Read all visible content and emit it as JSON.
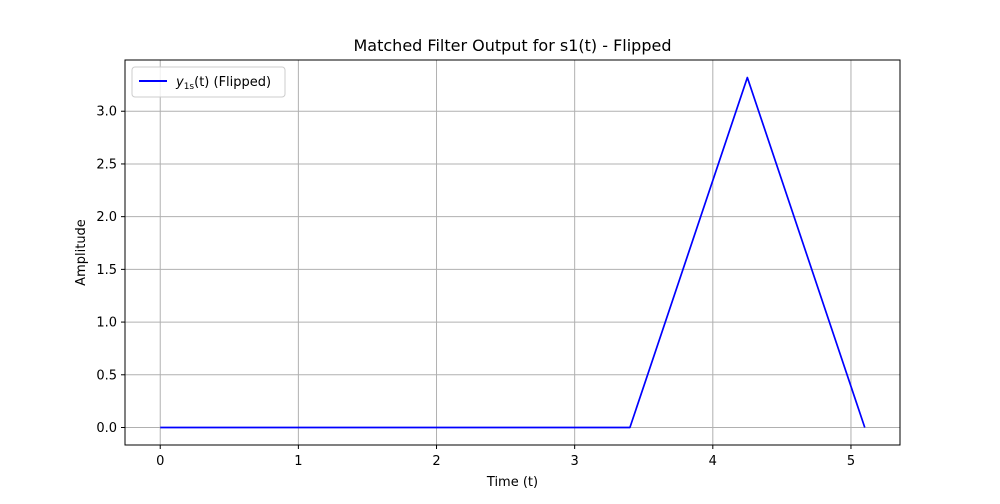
{
  "chart_data": {
    "type": "line",
    "title": "Matched Filter Output for s1(t) - Flipped",
    "xlabel": "Time (t)",
    "ylabel": "Amplitude",
    "xlim": [
      -0.255,
      5.355
    ],
    "ylim": [
      -0.166,
      3.486
    ],
    "xticks": [
      0,
      1,
      2,
      3,
      4,
      5
    ],
    "xtick_labels": [
      "0",
      "1",
      "2",
      "3",
      "4",
      "5"
    ],
    "yticks": [
      0.0,
      0.5,
      1.0,
      1.5,
      2.0,
      2.5,
      3.0
    ],
    "ytick_labels": [
      "0.0",
      "0.5",
      "1.0",
      "1.5",
      "2.0",
      "2.5",
      "3.0"
    ],
    "grid": true,
    "legend": {
      "placement": "upper-left",
      "entries": [
        {
          "label_math_base": "y",
          "label_math_sub": "1s",
          "label_math_arg": "(t)",
          "label_suffix": " (Flipped)"
        }
      ]
    },
    "series": [
      {
        "color": "#0000ff",
        "x": [
          0,
          3.4,
          4.25,
          5.1
        ],
        "y": [
          0,
          0,
          3.32,
          0
        ]
      }
    ]
  }
}
